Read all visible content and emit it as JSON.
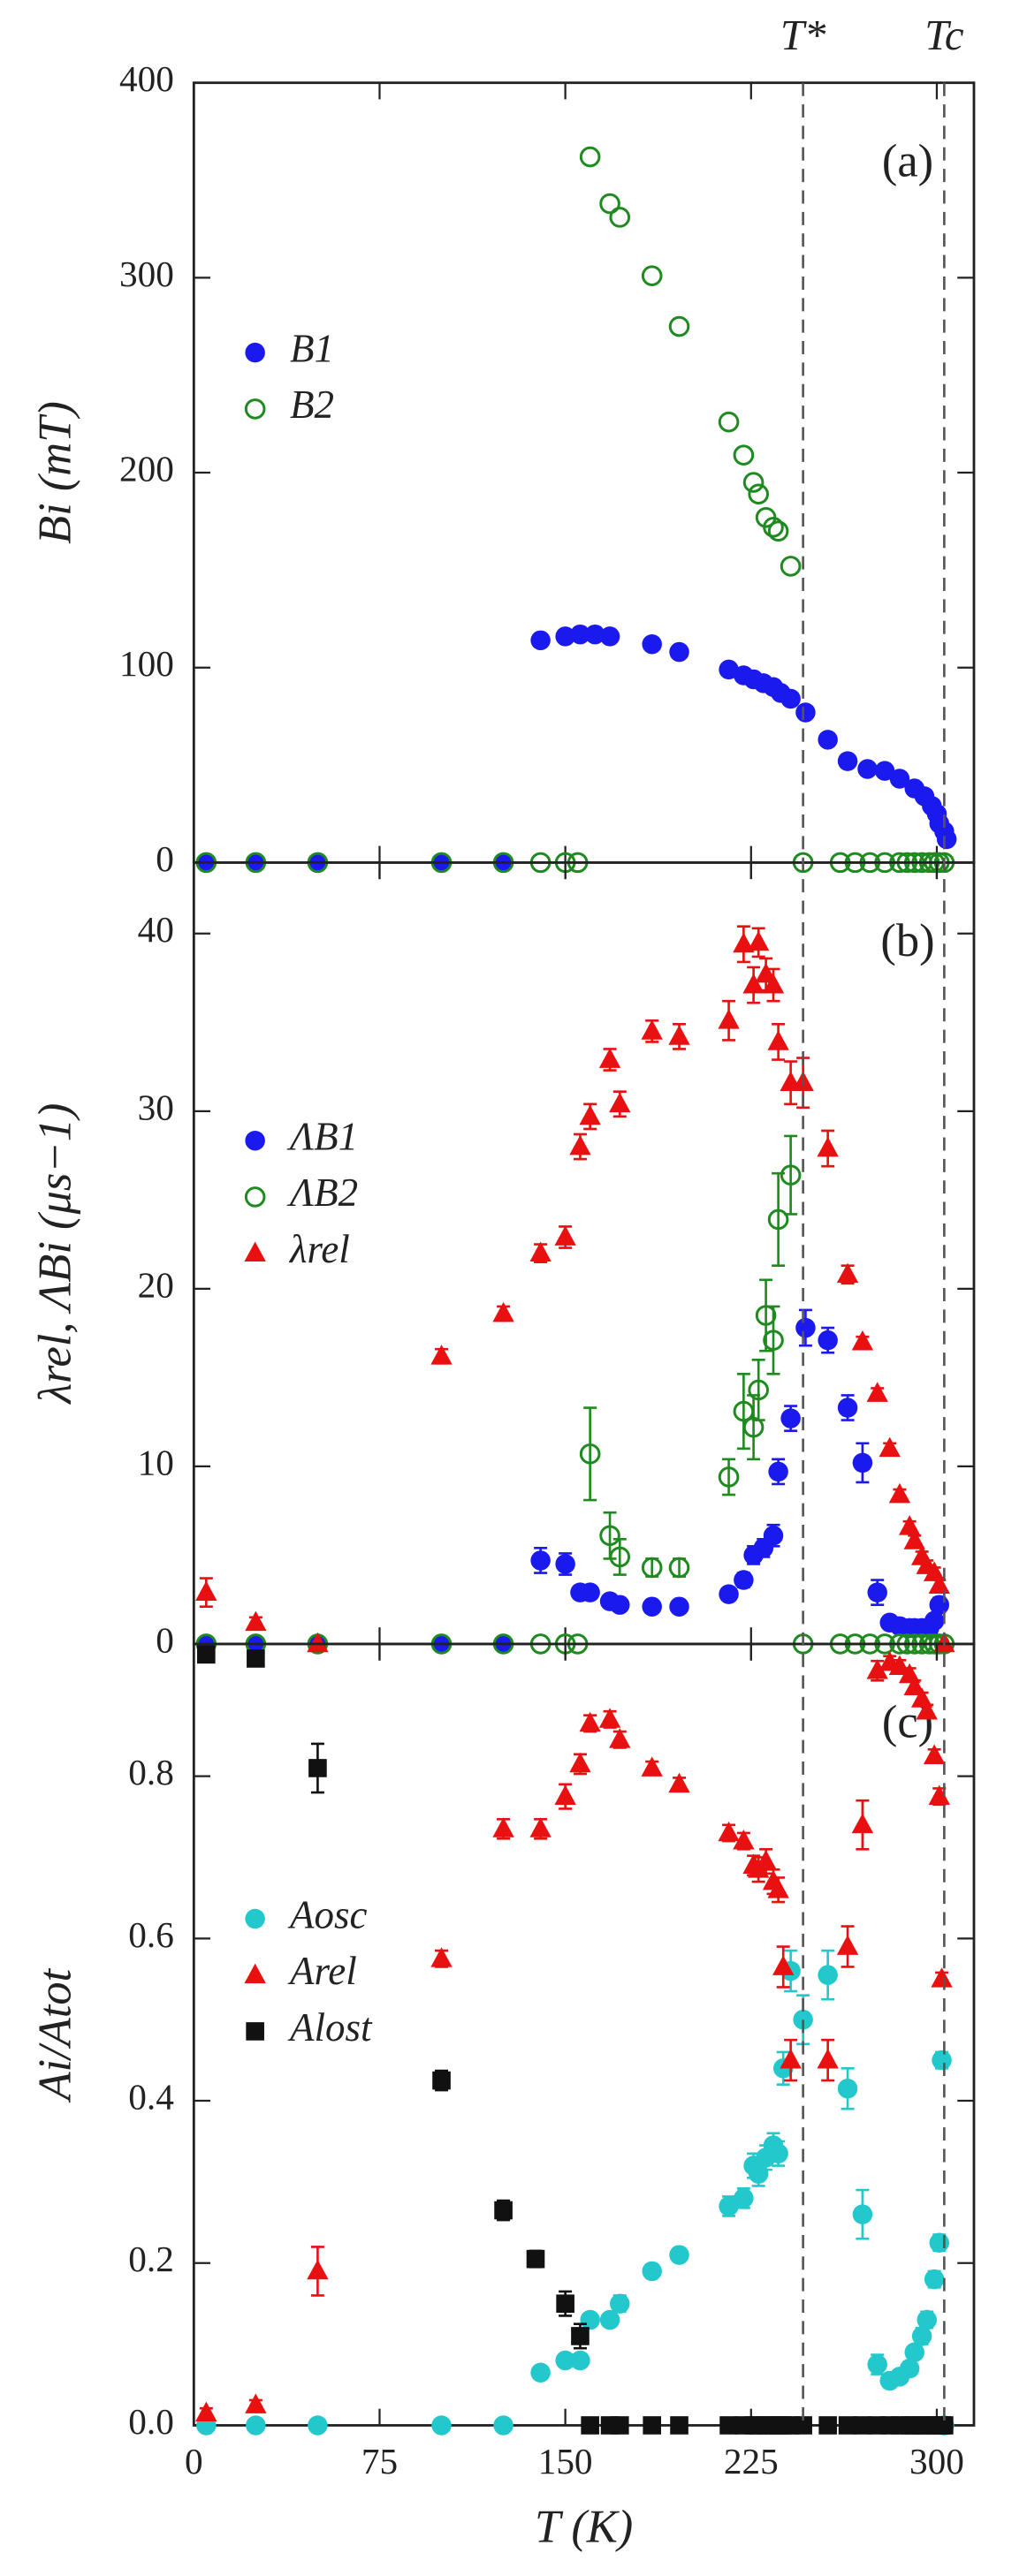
{
  "annotations": [
    {
      "label": "T*",
      "x": 246
    },
    {
      "label": "Tc",
      "x": 303
    }
  ],
  "chart_data": [
    {
      "type": "scatter",
      "panel_label": "(a)",
      "ylabel": "Bi (mT)",
      "xlim": [
        0,
        315
      ],
      "ylim": [
        0,
        400
      ],
      "yticks": [
        0,
        100,
        200,
        300,
        400
      ],
      "legend": "center left",
      "series": [
        {
          "name": "B1",
          "color": "#1a1aee",
          "marker": "circle",
          "x": [
            5,
            25,
            50,
            100,
            125,
            140,
            150,
            156,
            162,
            168,
            185,
            196,
            216,
            222,
            226,
            230,
            234,
            237,
            241,
            247,
            256,
            264,
            272,
            279,
            285,
            291,
            295,
            298,
            300,
            301,
            303,
            304
          ],
          "values": [
            0,
            0,
            0,
            0,
            0,
            114,
            116,
            117,
            117,
            116,
            112,
            108,
            99,
            96,
            94,
            92,
            90,
            87,
            84,
            77,
            63,
            52,
            48,
            47,
            43,
            38,
            34,
            29,
            25,
            20,
            16,
            12
          ]
        },
        {
          "name": "B2",
          "color": "#1f8a1f",
          "marker": "circle-open",
          "x": [
            5,
            25,
            50,
            100,
            125,
            140,
            150,
            155,
            160,
            168,
            172,
            185,
            196,
            216,
            222,
            226,
            228,
            231,
            234,
            236,
            241,
            246,
            261,
            267,
            273,
            279,
            285,
            288,
            291,
            294,
            297,
            299,
            301,
            303
          ],
          "values": [
            0,
            0,
            0,
            0,
            0,
            0,
            0,
            0,
            362,
            338,
            331,
            301,
            275,
            226,
            209,
            195,
            189,
            177,
            172,
            170,
            152,
            0,
            0,
            0,
            0,
            0,
            0,
            0,
            0,
            0,
            0,
            0,
            0,
            0
          ]
        }
      ]
    },
    {
      "type": "scatter",
      "panel_label": "(b)",
      "ylabel": "λrel, ΛBi (μs−1)",
      "xlim": [
        0,
        315
      ],
      "ylim": [
        0,
        44
      ],
      "yticks": [
        0,
        10,
        20,
        30,
        40
      ],
      "legend": "center left",
      "series": [
        {
          "name": "ΛB1",
          "color": "#1a1aee",
          "marker": "circle",
          "x": [
            5,
            25,
            50,
            100,
            125,
            140,
            150,
            156,
            160,
            168,
            172,
            185,
            196,
            216,
            222,
            226,
            230,
            234,
            236,
            241,
            247,
            256,
            264,
            270,
            276,
            281,
            285,
            289,
            291,
            294,
            297,
            299,
            301
          ],
          "values": [
            0,
            0,
            0,
            0,
            0,
            4.7,
            4.5,
            2.9,
            2.9,
            2.4,
            2.2,
            2.1,
            2.1,
            2.8,
            3.6,
            5.0,
            5.4,
            6.1,
            9.7,
            12.7,
            17.8,
            17.1,
            13.3,
            10.2,
            2.9,
            1.2,
            1.0,
            0.9,
            0.9,
            0.9,
            0.9,
            1.3,
            2.2
          ],
          "errors": [
            0,
            0,
            0,
            0,
            0,
            0.7,
            0.6,
            0.3,
            0.3,
            0.3,
            0.3,
            0.3,
            0.3,
            0.3,
            0.4,
            0.5,
            0.5,
            0.6,
            0.7,
            0.7,
            1.0,
            0.7,
            0.7,
            1.1,
            0.7,
            0.3,
            0.2,
            0.2,
            0.2,
            0.2,
            0.2,
            0.3,
            0.4
          ]
        },
        {
          "name": "ΛB2",
          "color": "#1f8a1f",
          "marker": "circle-open",
          "x": [
            5,
            25,
            50,
            100,
            125,
            140,
            150,
            155,
            160,
            168,
            172,
            185,
            196,
            216,
            222,
            226,
            228,
            231,
            234,
            236,
            241,
            246,
            261,
            267,
            273,
            279,
            285,
            288,
            291,
            294,
            297,
            299,
            301,
            303
          ],
          "values": [
            0,
            0,
            0,
            0,
            0,
            0,
            0,
            0,
            10.7,
            6.1,
            4.9,
            4.3,
            4.3,
            9.4,
            13.1,
            12.2,
            14.3,
            18.5,
            17.1,
            23.9,
            26.4,
            0,
            0,
            0,
            0,
            0,
            0,
            0,
            0,
            0,
            0,
            0,
            0,
            0
          ],
          "errors": [
            0,
            0,
            0,
            0,
            0,
            0,
            0,
            0,
            2.6,
            1.3,
            1.0,
            0.5,
            0.5,
            1.0,
            2.1,
            1.8,
            1.7,
            2.0,
            1.9,
            2.6,
            2.2,
            0,
            0,
            0,
            0,
            0,
            0,
            0,
            0,
            0,
            0,
            0,
            0,
            0
          ]
        },
        {
          "name": "λrel",
          "color": "#e81010",
          "marker": "triangle",
          "x": [
            5,
            25,
            50,
            100,
            125,
            140,
            150,
            156,
            160,
            168,
            172,
            185,
            196,
            216,
            222,
            226,
            228,
            231,
            234,
            236,
            241,
            246,
            256,
            264,
            270,
            276,
            281,
            285,
            289,
            291,
            294,
            296,
            299,
            301,
            303
          ],
          "values": [
            2.9,
            1.2,
            0,
            16.2,
            18.6,
            22.0,
            22.9,
            28.0,
            29.7,
            32.9,
            30.4,
            34.5,
            34.2,
            35.1,
            39.4,
            37.1,
            39.5,
            37.7,
            37.1,
            33.9,
            31.6,
            31.6,
            27.9,
            20.8,
            17.0,
            14.1,
            11.0,
            8.4,
            6.6,
            5.8,
            4.9,
            4.4,
            4.0,
            3.3,
            0
          ],
          "errors": [
            0.8,
            0.3,
            0,
            0.4,
            0.4,
            0.5,
            0.6,
            0.7,
            0.7,
            0.6,
            0.7,
            0.6,
            0.7,
            1.1,
            1.0,
            1.0,
            0.8,
            0.9,
            0.9,
            1.0,
            1.2,
            1.4,
            1.0,
            0.5,
            0.3,
            0.3,
            0.3,
            0.3,
            0.3,
            0.3,
            0.3,
            0.3,
            0.3,
            0.3,
            0
          ]
        }
      ]
    },
    {
      "type": "scatter",
      "panel_label": "(c)",
      "ylabel": "Ai/Atot",
      "xlabel": "T (K)",
      "xlim": [
        0,
        315
      ],
      "xticks": [
        0,
        75,
        150,
        225,
        300
      ],
      "ylim": [
        0,
        0.963
      ],
      "yticks": [
        {
          "value": 0,
          "label": "0.0"
        },
        0.2,
        0.4,
        0.6,
        0.8
      ],
      "legend": "center left",
      "series": [
        {
          "name": "Aosc",
          "color": "#22c8cc",
          "marker": "circle",
          "x": [
            5,
            25,
            50,
            100,
            125,
            140,
            150,
            156,
            160,
            168,
            172,
            185,
            196,
            216,
            222,
            226,
            228,
            231,
            234,
            236,
            238,
            241,
            246,
            256,
            264,
            270,
            276,
            281,
            285,
            289,
            291,
            294,
            296,
            299,
            301,
            302,
            303
          ],
          "values": [
            0,
            0,
            0,
            0,
            0,
            0.065,
            0.08,
            0.08,
            0.13,
            0.13,
            0.15,
            0.19,
            0.21,
            0.27,
            0.28,
            0.32,
            0.31,
            0.33,
            0.345,
            0.335,
            0.44,
            0.56,
            0.5,
            0.555,
            0.415,
            0.26,
            0.075,
            0.055,
            0.06,
            0.07,
            0.09,
            0.11,
            0.13,
            0.18,
            0.225,
            0.45,
            0
          ],
          "errors": [
            0,
            0,
            0,
            0,
            0,
            0.006,
            0.006,
            0.006,
            0.008,
            0.008,
            0.01,
            0.008,
            0.008,
            0.012,
            0.012,
            0.015,
            0.015,
            0.015,
            0.015,
            0.015,
            0.02,
            0.025,
            0.03,
            0.03,
            0.025,
            0.03,
            0.012,
            0.008,
            0.008,
            0.008,
            0.008,
            0.01,
            0.01,
            0.01,
            0.01,
            0.01,
            0
          ]
        },
        {
          "name": "Arel",
          "color": "#e81010",
          "marker": "triangle",
          "x": [
            5,
            25,
            50,
            100,
            125,
            140,
            150,
            156,
            160,
            168,
            172,
            185,
            196,
            216,
            222,
            226,
            228,
            231,
            234,
            236,
            238,
            241,
            256,
            264,
            270,
            276,
            281,
            285,
            289,
            291,
            294,
            296,
            299,
            301,
            302
          ],
          "values": [
            0.015,
            0.025,
            0.19,
            0.575,
            0.735,
            0.735,
            0.775,
            0.815,
            0.865,
            0.87,
            0.845,
            0.81,
            0.79,
            0.73,
            0.72,
            0.69,
            0.685,
            0.695,
            0.67,
            0.66,
            0.565,
            0.45,
            0.45,
            0.59,
            0.74,
            0.93,
            0.94,
            0.935,
            0.925,
            0.91,
            0.895,
            0.88,
            0.825,
            0.775,
            0.55
          ],
          "errors": [
            0.006,
            0.006,
            0.03,
            0.01,
            0.012,
            0.012,
            0.015,
            0.012,
            0.01,
            0.01,
            0.01,
            0.008,
            0.008,
            0.01,
            0.01,
            0.012,
            0.015,
            0.015,
            0.015,
            0.015,
            0.025,
            0.025,
            0.025,
            0.025,
            0.03,
            0.012,
            0.008,
            0.008,
            0.008,
            0.008,
            0.008,
            0.008,
            0.008,
            0.01,
            0.008
          ]
        },
        {
          "name": "Alost",
          "color": "#111111",
          "marker": "square",
          "x": [
            5,
            25,
            50,
            100,
            125,
            138,
            150,
            156,
            160,
            168,
            172,
            185,
            196,
            216,
            222,
            226,
            228,
            231,
            234,
            236,
            238,
            241,
            246,
            256,
            264,
            270,
            276,
            281,
            285,
            289,
            291,
            294,
            296,
            299,
            301,
            302,
            303
          ],
          "values": [
            0.95,
            0.945,
            0.81,
            0.425,
            0.265,
            0.205,
            0.15,
            0.11,
            0,
            0,
            0,
            0,
            0,
            0,
            0,
            0,
            0,
            0,
            0,
            0,
            0,
            0,
            0,
            0,
            0,
            0,
            0,
            0,
            0,
            0,
            0,
            0,
            0,
            0,
            0,
            0,
            0
          ],
          "errors": [
            0.005,
            0.005,
            0.03,
            0.012,
            0.012,
            0.01,
            0.015,
            0.015,
            0,
            0,
            0,
            0,
            0,
            0,
            0,
            0,
            0,
            0,
            0,
            0,
            0,
            0,
            0,
            0,
            0,
            0,
            0,
            0,
            0,
            0,
            0,
            0,
            0,
            0,
            0,
            0,
            0
          ]
        }
      ]
    }
  ]
}
